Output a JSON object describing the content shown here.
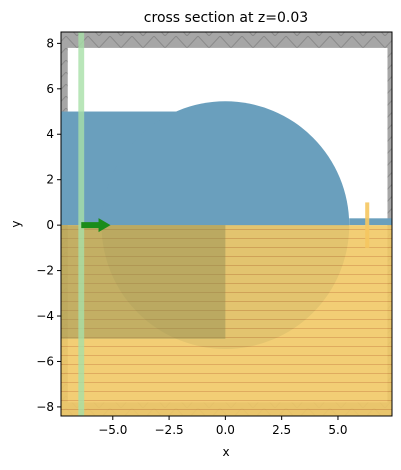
{
  "chart_data": {
    "type": "cross-section",
    "title": "cross section at z=0.03",
    "xlabel": "x",
    "ylabel": "y",
    "xlim": [
      -7.3,
      7.4
    ],
    "ylim": [
      -8.4,
      8.5
    ],
    "x_ticks": [
      -5.0,
      -2.5,
      0.0,
      2.5,
      5.0
    ],
    "x_tick_labels": [
      "−5.0",
      "−2.5",
      "0.0",
      "2.5",
      "5.0"
    ],
    "y_ticks": [
      -8,
      -6,
      -4,
      -2,
      0,
      2,
      4,
      6,
      8
    ],
    "y_tick_labels": [
      "−8",
      "−6",
      "−4",
      "−2",
      "0",
      "2",
      "4",
      "6",
      "8"
    ],
    "grid": false,
    "simulation_domain": {
      "x": [
        -7.3,
        7.4
      ],
      "y": [
        -8.4,
        8.5
      ]
    },
    "pml": {
      "x_left": -7.0,
      "x_right": 7.2,
      "y_top": 7.8,
      "y_bottom": -7.8
    },
    "structures": [
      {
        "name": "waveguide-slab",
        "shape": "rectangle",
        "x": [
          -7.3,
          0
        ],
        "y": [
          0,
          5.0
        ],
        "color": "#6a9fbd"
      },
      {
        "name": "disk",
        "shape": "circle",
        "center": [
          0,
          0
        ],
        "radius": 5.5,
        "color": "#6a9fbd"
      },
      {
        "name": "output-waveguide",
        "shape": "rectangle",
        "x": [
          5.5,
          7.4
        ],
        "y": [
          0,
          0.3
        ],
        "color": "#6a9fbd"
      },
      {
        "name": "substrate",
        "shape": "rectangle",
        "x": [
          -7.3,
          7.4
        ],
        "y": [
          -8.4,
          0
        ],
        "color": "#f0c866"
      }
    ],
    "source": {
      "x": -6.4,
      "y": [
        -8.4,
        8.5
      ],
      "color": "#a8e0a8"
    },
    "source_direction": {
      "from_x": -6.4,
      "to_x": -5.1,
      "y": 0,
      "color": "#1a8c1a"
    },
    "monitor": {
      "x": 6.3,
      "y": [
        -1.0,
        1.0
      ],
      "color": "#f5c660"
    }
  }
}
